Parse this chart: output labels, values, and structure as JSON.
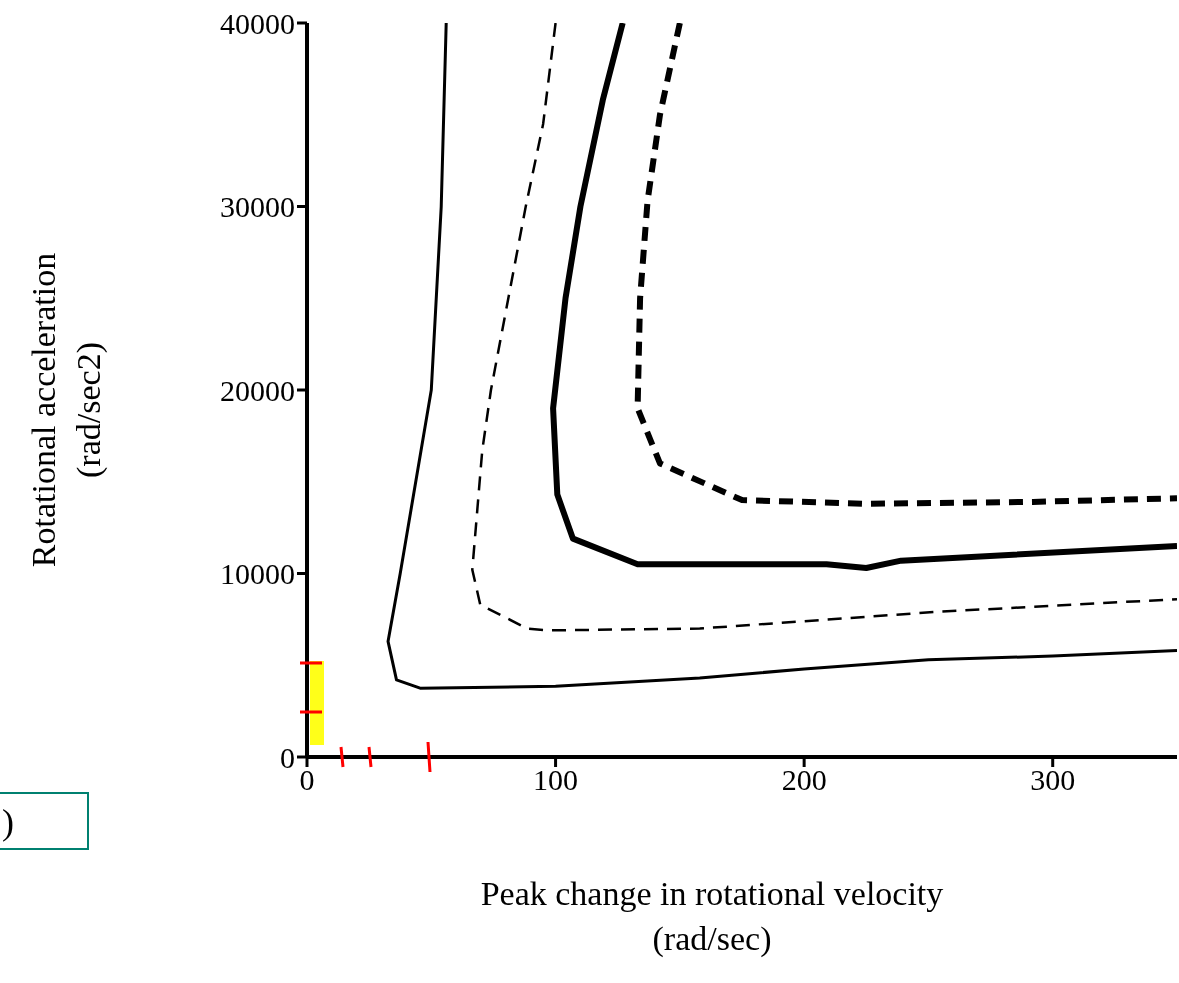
{
  "chart_data": {
    "type": "line",
    "xlabel": "Peak change in rotational velocity\n(rad/sec)",
    "ylabel": "Rotational acceleration\n(rad/sec2)",
    "xlim": [
      0,
      350
    ],
    "xticks": [
      0,
      100,
      200,
      300
    ],
    "ylim": [
      0,
      40000
    ],
    "yticks": [
      0,
      10000,
      20000,
      30000,
      40000
    ],
    "marker": "none",
    "annotations": [
      ")"
    ],
    "series": [
      {
        "color": "#000000",
        "line_style": "solid",
        "x": [
          56,
          54,
          50,
          37.5,
          32.6,
          36,
          45.5,
          100,
          158,
          200,
          250,
          300,
          350
        ],
        "values": [
          40000,
          30000,
          20000,
          10000,
          6300,
          4200,
          3750,
          3850,
          4300,
          4800,
          5300,
          5500,
          5800
        ]
      },
      {
        "color": "#000000",
        "line_style": "dashed",
        "x": [
          100,
          95,
          88,
          74,
          70.5,
          66.5,
          69.7,
          88.6,
          97,
          158,
          252,
          350
        ],
        "values": [
          40000,
          34500,
          30000,
          20000,
          16700,
          10200,
          8300,
          7000,
          6900,
          7000,
          7900,
          8600
        ]
      },
      {
        "color": "#000000",
        "line_style": "solid",
        "x": [
          127,
          119,
          110,
          104,
          99,
          100.7,
          107,
          133,
          209,
          225,
          239,
          350
        ],
        "values": [
          40000,
          35800,
          30000,
          25000,
          19000,
          14300,
          11900,
          10500,
          10500,
          10300,
          10700,
          11500
        ]
      },
      {
        "color": "#000000",
        "line_style": "dashed",
        "x": [
          150,
          142,
          137,
          134,
          133,
          142,
          175,
          225,
          292,
          350
        ],
        "values": [
          40000,
          35000,
          30300,
          25000,
          19000,
          16000,
          14000,
          13800,
          13900,
          14100
        ]
      }
    ]
  }
}
